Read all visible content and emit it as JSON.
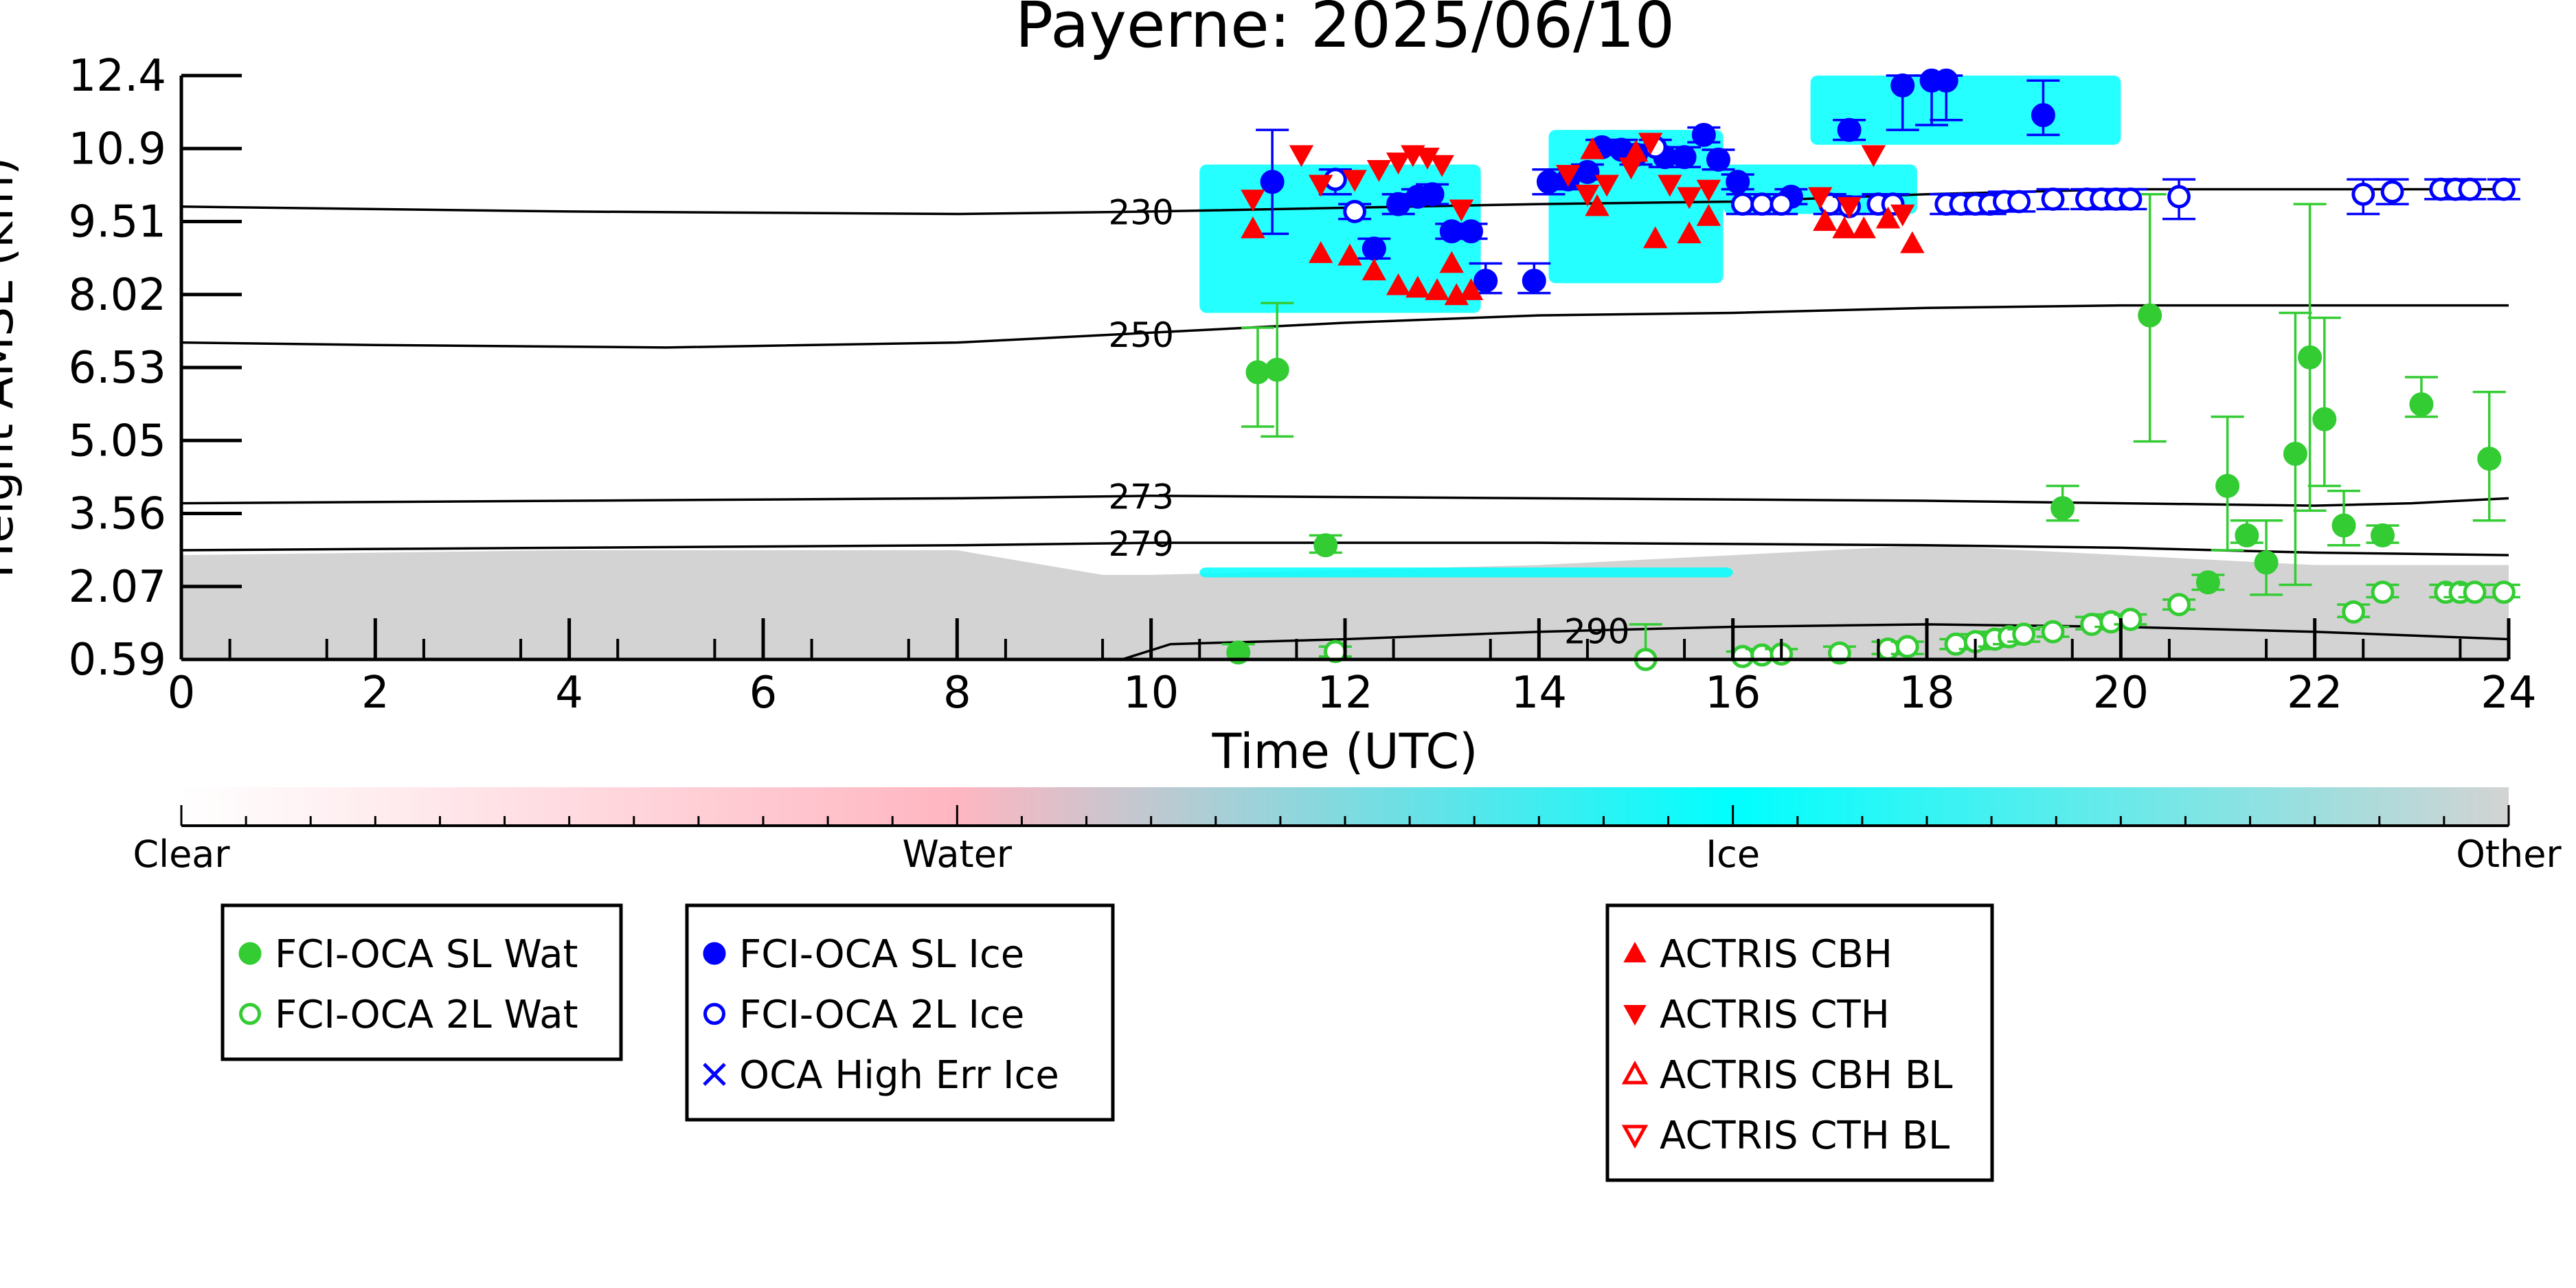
{
  "chart_data": {
    "type": "scatter",
    "title": "Payerne: 2025/06/10",
    "xlabel": "Time (UTC)",
    "ylabel": "Height AMSL (km)",
    "xlim": [
      0,
      24
    ],
    "ylim": [
      0.59,
      12.4
    ],
    "x_ticks": [
      "0",
      "2",
      "4",
      "6",
      "8",
      "10",
      "12",
      "14",
      "16",
      "18",
      "20",
      "22",
      "24"
    ],
    "y_ticks": [
      "0.59",
      "2.07",
      "3.56",
      "5.05",
      "6.53",
      "8.02",
      "9.51",
      "10.9",
      "12.4"
    ],
    "grid": false,
    "background": {
      "description_classes": [
        "Clear",
        "Water",
        "Ice",
        "Other"
      ],
      "colors": {
        "Clear": "#ffffff",
        "Water": "#ffb6c1",
        "Ice": "#00ffff",
        "Other": "#d3d3d3"
      },
      "other_layer": [
        [
          0,
          2.7
        ],
        [
          2,
          2.75
        ],
        [
          4,
          2.8
        ],
        [
          6,
          2.8
        ],
        [
          8,
          2.8
        ],
        [
          9.5,
          2.3
        ],
        [
          10,
          2.3
        ],
        [
          12,
          2.4
        ],
        [
          14,
          2.5
        ],
        [
          16,
          2.7
        ],
        [
          18,
          2.9
        ],
        [
          20,
          2.7
        ],
        [
          22,
          2.5
        ],
        [
          24,
          2.5
        ]
      ],
      "ice_clouds": [
        {
          "x0": 10.5,
          "x1": 13.4,
          "y0": 7.6,
          "y1": 10.6
        },
        {
          "x0": 14.1,
          "x1": 15.9,
          "y0": 8.2,
          "y1": 11.3
        },
        {
          "x0": 15.9,
          "x1": 17.9,
          "y0": 9.6,
          "y1": 10.6
        },
        {
          "x0": 16.8,
          "x1": 20.0,
          "y0": 11.0,
          "y1": 12.4
        },
        {
          "x0": 10.5,
          "x1": 16.0,
          "y0": 2.25,
          "y1": 2.45
        }
      ]
    },
    "isotherms": [
      {
        "label": "230",
        "label_x": 9.6,
        "points": [
          [
            0,
            9.75
          ],
          [
            4,
            9.65
          ],
          [
            8,
            9.6
          ],
          [
            10,
            9.65
          ],
          [
            14,
            9.8
          ],
          [
            16,
            9.85
          ],
          [
            18,
            10.0
          ],
          [
            20,
            10.1
          ],
          [
            22,
            10.1
          ],
          [
            24,
            10.1
          ]
        ]
      },
      {
        "label": "250",
        "label_x": 9.6,
        "points": [
          [
            0,
            7.0
          ],
          [
            2,
            6.95
          ],
          [
            5,
            6.9
          ],
          [
            8,
            7.0
          ],
          [
            10,
            7.2
          ],
          [
            12,
            7.4
          ],
          [
            14,
            7.55
          ],
          [
            16,
            7.6
          ],
          [
            18,
            7.7
          ],
          [
            20,
            7.75
          ],
          [
            24,
            7.75
          ]
        ]
      },
      {
        "label": "273",
        "label_x": 9.6,
        "points": [
          [
            0,
            3.75
          ],
          [
            4,
            3.8
          ],
          [
            8,
            3.85
          ],
          [
            10,
            3.9
          ],
          [
            14,
            3.85
          ],
          [
            18,
            3.8
          ],
          [
            20,
            3.75
          ],
          [
            22,
            3.7
          ],
          [
            23,
            3.75
          ],
          [
            24,
            3.85
          ]
        ]
      },
      {
        "label": "279",
        "label_x": 9.6,
        "points": [
          [
            0,
            2.8
          ],
          [
            4,
            2.85
          ],
          [
            8,
            2.9
          ],
          [
            10,
            2.95
          ],
          [
            14,
            2.95
          ],
          [
            18,
            2.9
          ],
          [
            20,
            2.85
          ],
          [
            22,
            2.75
          ],
          [
            24,
            2.7
          ]
        ]
      },
      {
        "label": "290",
        "label_x": 14.3,
        "points": [
          [
            9.7,
            0.59
          ],
          [
            10.2,
            0.9
          ],
          [
            12,
            1.0
          ],
          [
            14,
            1.15
          ],
          [
            16,
            1.25
          ],
          [
            18,
            1.3
          ],
          [
            20,
            1.25
          ],
          [
            22,
            1.15
          ],
          [
            24,
            1.0
          ]
        ]
      }
    ],
    "series": [
      {
        "name": "FCI-OCA SL Wat",
        "marker": "circle-filled",
        "color": "#33cc33",
        "points": [
          [
            10.9,
            0.73,
            0.9,
            0.59
          ],
          [
            11.1,
            6.4,
            7.3,
            5.3
          ],
          [
            11.3,
            6.45,
            7.8,
            5.1
          ],
          [
            11.8,
            2.9,
            3.1,
            2.75
          ],
          [
            19.4,
            3.65,
            4.1,
            3.4
          ],
          [
            20.3,
            7.55,
            10.0,
            5.0
          ],
          [
            20.9,
            2.15,
            2.3,
            2.0
          ],
          [
            21.1,
            4.1,
            5.5,
            2.8
          ],
          [
            21.3,
            3.1,
            3.4,
            2.95
          ],
          [
            21.5,
            2.55,
            3.4,
            1.9
          ],
          [
            21.8,
            4.75,
            7.6,
            2.1
          ],
          [
            21.95,
            6.7,
            9.8,
            3.6
          ],
          [
            22.1,
            5.45,
            7.5,
            4.1
          ],
          [
            22.3,
            3.3,
            4.0,
            2.9
          ],
          [
            22.7,
            3.1,
            3.3,
            2.95
          ],
          [
            23.1,
            5.75,
            6.3,
            5.5
          ],
          [
            23.8,
            4.65,
            6.0,
            3.4
          ]
        ]
      },
      {
        "name": "FCI-OCA 2L Wat",
        "marker": "circle-open",
        "color": "#33cc33",
        "points": [
          [
            11.9,
            0.75,
            0.85,
            0.65
          ],
          [
            15.1,
            0.59,
            1.3,
            0.59
          ],
          [
            16.1,
            0.65,
            0.75,
            0.59
          ],
          [
            16.3,
            0.68,
            0.8,
            0.59
          ],
          [
            16.5,
            0.7,
            0.8,
            0.6
          ],
          [
            17.1,
            0.72,
            0.85,
            0.6
          ],
          [
            17.6,
            0.8,
            0.95,
            0.7
          ],
          [
            17.8,
            0.85,
            0.95,
            0.7
          ],
          [
            18.3,
            0.9,
            1.0,
            0.8
          ],
          [
            18.5,
            0.95,
            1.1,
            0.8
          ],
          [
            18.7,
            1.0,
            1.15,
            0.85
          ],
          [
            18.85,
            1.05,
            1.2,
            0.9
          ],
          [
            19.0,
            1.1,
            1.2,
            0.95
          ],
          [
            19.3,
            1.15,
            1.25,
            1.05
          ],
          [
            19.7,
            1.3,
            1.45,
            1.2
          ],
          [
            19.9,
            1.35,
            1.5,
            1.25
          ],
          [
            20.1,
            1.4,
            1.5,
            1.3
          ],
          [
            20.6,
            1.7,
            1.8,
            1.6
          ],
          [
            22.4,
            1.55,
            1.7,
            1.45
          ],
          [
            22.7,
            1.95,
            2.1,
            1.85
          ],
          [
            23.35,
            1.95,
            2.1,
            1.85
          ],
          [
            23.5,
            1.95,
            2.1,
            1.85
          ],
          [
            23.65,
            1.95,
            2.1,
            1.85
          ],
          [
            23.95,
            1.95,
            2.1,
            1.85
          ]
        ]
      },
      {
        "name": "FCI-OCA SL Ice",
        "marker": "circle-filled",
        "color": "#0000ff",
        "points": [
          [
            11.25,
            10.25,
            11.3,
            9.2
          ],
          [
            12.3,
            8.9,
            9.1,
            8.7
          ],
          [
            12.55,
            9.8,
            10.0,
            9.6
          ],
          [
            12.75,
            9.95,
            10.1,
            9.8
          ],
          [
            12.9,
            10.0,
            10.2,
            9.8
          ],
          [
            13.1,
            9.25,
            9.4,
            9.1
          ],
          [
            13.3,
            9.25,
            9.4,
            9.1
          ],
          [
            13.45,
            8.25,
            8.6,
            8.0
          ],
          [
            13.95,
            8.25,
            8.6,
            8.0
          ],
          [
            14.1,
            10.25,
            10.5,
            10.0
          ],
          [
            14.3,
            10.3,
            10.5,
            10.1
          ],
          [
            14.5,
            10.45,
            10.6,
            10.3
          ],
          [
            14.65,
            10.95,
            11.1,
            10.8
          ],
          [
            14.85,
            10.9,
            11.1,
            10.8
          ],
          [
            15.0,
            10.8,
            11.0,
            10.6
          ],
          [
            15.3,
            10.75,
            10.95,
            10.55
          ],
          [
            15.5,
            10.75,
            10.95,
            10.55
          ],
          [
            15.7,
            11.2,
            11.35,
            11.05
          ],
          [
            15.85,
            10.7,
            10.9,
            10.5
          ],
          [
            16.05,
            10.25,
            10.4,
            10.1
          ],
          [
            16.6,
            9.95,
            10.1,
            9.8
          ],
          [
            17.2,
            11.3,
            11.5,
            11.1
          ],
          [
            17.75,
            12.2,
            12.4,
            11.3
          ],
          [
            18.05,
            12.3,
            12.4,
            11.4
          ],
          [
            18.2,
            12.3,
            12.4,
            11.5
          ],
          [
            19.2,
            11.6,
            12.3,
            11.2
          ]
        ]
      },
      {
        "name": "FCI-OCA 2L Ice",
        "marker": "circle-open",
        "color": "#0000ff",
        "points": [
          [
            11.9,
            10.3,
            10.5,
            10.0
          ],
          [
            12.1,
            9.65,
            9.8,
            9.5
          ],
          [
            15.2,
            10.95,
            11.1,
            10.8
          ],
          [
            16.1,
            9.8,
            10.0,
            9.6
          ],
          [
            16.3,
            9.8,
            10.0,
            9.6
          ],
          [
            16.5,
            9.8,
            10.0,
            9.6
          ],
          [
            17.0,
            9.8,
            10.0,
            9.6
          ],
          [
            17.2,
            9.75,
            9.95,
            9.6
          ],
          [
            17.5,
            9.8,
            10.0,
            9.6
          ],
          [
            17.65,
            9.8,
            10.0,
            9.6
          ],
          [
            18.2,
            9.8,
            10.0,
            9.6
          ],
          [
            18.35,
            9.8,
            10.0,
            9.6
          ],
          [
            18.5,
            9.8,
            10.0,
            9.6
          ],
          [
            18.65,
            9.8,
            10.0,
            9.6
          ],
          [
            18.8,
            9.85,
            10.05,
            9.65
          ],
          [
            18.95,
            9.85,
            10.05,
            9.65
          ],
          [
            19.3,
            9.9,
            10.1,
            9.7
          ],
          [
            19.65,
            9.9,
            10.1,
            9.7
          ],
          [
            19.8,
            9.9,
            10.1,
            9.7
          ],
          [
            19.95,
            9.9,
            10.1,
            9.7
          ],
          [
            20.1,
            9.9,
            10.1,
            9.7
          ],
          [
            20.6,
            9.95,
            10.3,
            9.5
          ],
          [
            22.5,
            10.0,
            10.3,
            9.6
          ],
          [
            22.8,
            10.05,
            10.3,
            9.8
          ],
          [
            23.3,
            10.1,
            10.3,
            9.9
          ],
          [
            23.45,
            10.1,
            10.3,
            9.9
          ],
          [
            23.6,
            10.1,
            10.3,
            9.9
          ],
          [
            23.95,
            10.1,
            10.3,
            9.9
          ]
        ]
      },
      {
        "name": "OCA High Err Ice",
        "marker": "x",
        "color": "#0000ff",
        "points": []
      },
      {
        "name": "ACTRIS CBH",
        "marker": "triangle-up-filled",
        "color": "#ff0000",
        "points": [
          [
            11.05,
            9.3
          ],
          [
            11.75,
            8.8
          ],
          [
            12.05,
            8.75
          ],
          [
            12.3,
            8.45
          ],
          [
            12.55,
            8.15
          ],
          [
            12.75,
            8.1
          ],
          [
            12.95,
            8.05
          ],
          [
            13.15,
            7.95
          ],
          [
            13.3,
            8.05
          ],
          [
            13.1,
            8.6
          ],
          [
            14.6,
            9.75
          ],
          [
            15.2,
            9.1
          ],
          [
            15.55,
            9.2
          ],
          [
            15.75,
            9.55
          ],
          [
            16.95,
            9.45
          ],
          [
            17.15,
            9.3
          ],
          [
            17.35,
            9.3
          ],
          [
            17.6,
            9.5
          ],
          [
            17.85,
            9.0
          ],
          [
            14.55,
            10.9
          ],
          [
            15.0,
            10.85
          ]
        ]
      },
      {
        "name": "ACTRIS CTH",
        "marker": "triangle-down-filled",
        "color": "#ff0000",
        "points": [
          [
            11.05,
            9.9
          ],
          [
            11.55,
            10.8
          ],
          [
            11.75,
            10.2
          ],
          [
            12.1,
            10.3
          ],
          [
            12.35,
            10.5
          ],
          [
            12.55,
            10.65
          ],
          [
            12.7,
            10.8
          ],
          [
            12.85,
            10.75
          ],
          [
            13.0,
            10.6
          ],
          [
            13.2,
            9.7
          ],
          [
            14.3,
            10.4
          ],
          [
            14.5,
            10.0
          ],
          [
            14.7,
            10.2
          ],
          [
            14.95,
            10.55
          ],
          [
            15.15,
            11.05
          ],
          [
            15.35,
            10.2
          ],
          [
            15.55,
            9.95
          ],
          [
            15.75,
            10.1
          ],
          [
            16.9,
            9.95
          ],
          [
            17.2,
            9.75
          ],
          [
            17.45,
            10.8
          ],
          [
            17.75,
            9.6
          ]
        ]
      },
      {
        "name": "ACTRIS CBH BL",
        "marker": "triangle-up-open",
        "color": "#ff0000",
        "points": []
      },
      {
        "name": "ACTRIS CTH BL",
        "marker": "triangle-down-open",
        "color": "#ff0000",
        "points": []
      }
    ],
    "colorbar": {
      "labels": [
        "Clear",
        "Water",
        "Ice",
        "Other"
      ],
      "stops": [
        "#ffffff",
        "#ffb6c1",
        "#00ffff",
        "#d3d3d3"
      ]
    },
    "legends": [
      {
        "entries": [
          "FCI-OCA SL Wat",
          "FCI-OCA 2L Wat"
        ]
      },
      {
        "entries": [
          "FCI-OCA SL Ice",
          "FCI-OCA 2L Ice",
          "OCA High Err Ice"
        ]
      },
      {
        "entries": [
          "ACTRIS CBH",
          "ACTRIS CTH",
          "ACTRIS CBH BL",
          "ACTRIS CTH BL"
        ]
      }
    ]
  }
}
